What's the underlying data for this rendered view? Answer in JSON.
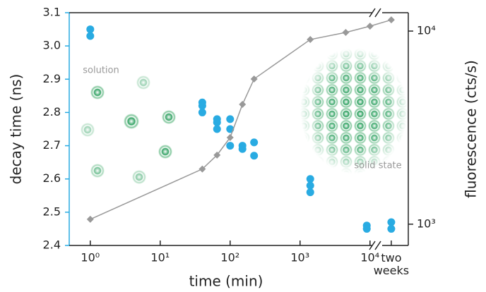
{
  "chart_data": {
    "type": "scatter",
    "x_label": "time (min)",
    "y_label": "decay time (ns)",
    "y2_label": "fluorescence (cts/s)",
    "xlog": true,
    "y2log": true,
    "xlim": [
      0.5,
      30000
    ],
    "xticks": [
      {
        "value": 1,
        "label": "10⁰"
      },
      {
        "value": 10,
        "label": "10¹"
      },
      {
        "value": 100,
        "label": "10²"
      },
      {
        "value": 1000,
        "label": "10³"
      },
      {
        "value": 10000,
        "label": "10⁴"
      },
      {
        "value": 20160,
        "label": "two weeks"
      }
    ],
    "ylim": [
      2.4,
      3.1
    ],
    "yticks": [
      2.4,
      2.5,
      2.6,
      2.7,
      2.8,
      2.9,
      {
        "value": 3,
        "label": "3.0"
      },
      3.1
    ],
    "y2lim": [
      776,
      12450
    ],
    "y2ticks": [
      {
        "value": 1000,
        "label": "10³"
      },
      {
        "value": 10000,
        "label": "10⁴"
      }
    ],
    "series": [
      {
        "color": "#29abe2",
        "marker": "circle",
        "x": [
          1,
          1,
          40,
          40,
          40,
          65,
          65,
          65,
          100,
          100,
          100,
          150,
          150,
          220,
          220,
          1400,
          1400,
          1400,
          9000,
          9000,
          20160,
          20160
        ],
        "values": [
          3.05,
          3.03,
          2.83,
          2.82,
          2.8,
          2.78,
          2.77,
          2.75,
          2.78,
          2.75,
          2.7,
          2.7,
          2.69,
          2.71,
          2.67,
          2.6,
          2.58,
          2.56,
          2.46,
          2.45,
          2.47,
          2.45
        ]
      },
      {
        "color": "#999999",
        "marker": "diamond",
        "line": true,
        "axis": "y2",
        "x": [
          1,
          40,
          65,
          100,
          150,
          220,
          1400,
          4500,
          10000,
          20160
        ],
        "values": [
          1060,
          1930,
          2280,
          2810,
          4170,
          5650,
          9040,
          9840,
          10600,
          11430
        ]
      }
    ],
    "annotations": [
      {
        "text": "solution"
      },
      {
        "text": "solid state"
      }
    ]
  }
}
